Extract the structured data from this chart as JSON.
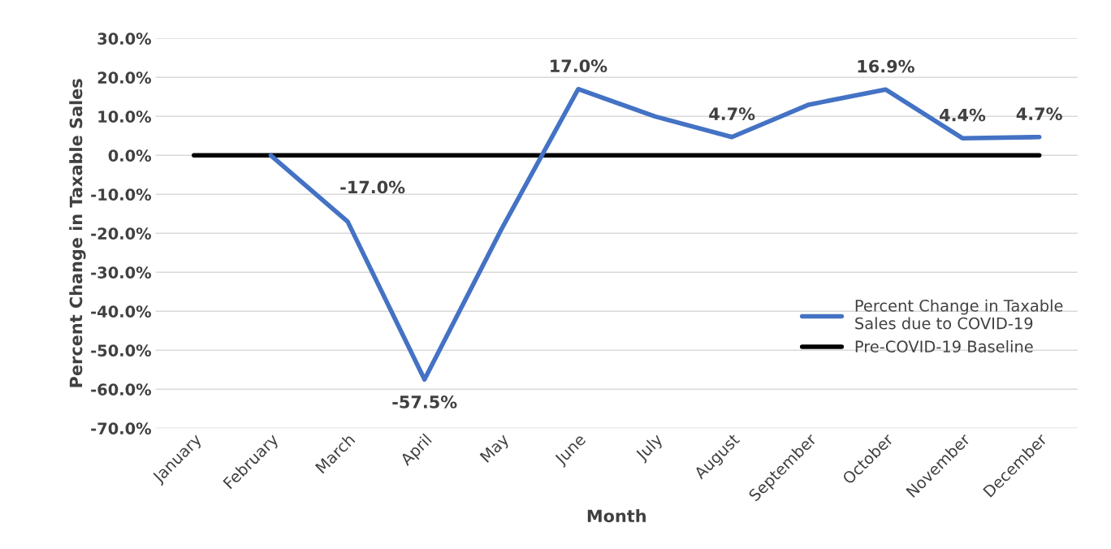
{
  "chart_data": {
    "type": "line",
    "xlabel": "Month",
    "ylabel": "Percent Change in Taxable Sales",
    "categories": [
      "January",
      "February",
      "March",
      "April",
      "May",
      "June",
      "July",
      "August",
      "September",
      "October",
      "November",
      "December"
    ],
    "series": [
      {
        "name": "Percent Change in Taxable\nSales due to COVID-19",
        "color": "#4472c4",
        "values": [
          null,
          0,
          -17.0,
          -57.5,
          -19,
          17.0,
          10,
          4.7,
          13,
          16.9,
          4.4,
          4.7
        ],
        "value_labels": [
          null,
          null,
          "-17.0%",
          "-57.5%",
          null,
          "17.0%",
          null,
          "4.7%",
          null,
          "16.9%",
          "4.4%",
          "4.7%"
        ]
      },
      {
        "name": "Pre-COVID-19 Baseline",
        "color": "#000000",
        "values": [
          0,
          0,
          0,
          0,
          0,
          0,
          0,
          0,
          0,
          0,
          0,
          0
        ]
      }
    ],
    "ylim": [
      -70,
      30
    ],
    "yticks": [
      {
        "value": -70,
        "label": "-70.0%"
      },
      {
        "value": -60,
        "label": "-60.0%"
      },
      {
        "value": -50,
        "label": "-50.0%"
      },
      {
        "value": -40,
        "label": "-40.0%"
      },
      {
        "value": -30,
        "label": "-30.0%"
      },
      {
        "value": -20,
        "label": "-20.0%"
      },
      {
        "value": -10,
        "label": "-10.0%"
      },
      {
        "value": 0,
        "label": "0.0%"
      },
      {
        "value": 10,
        "label": "10.0%"
      },
      {
        "value": 20,
        "label": "20.0%"
      },
      {
        "value": 30,
        "label": "30.0%"
      }
    ],
    "grid": "y",
    "legend": "bottom right",
    "marker": "none",
    "line_style": "solid"
  }
}
